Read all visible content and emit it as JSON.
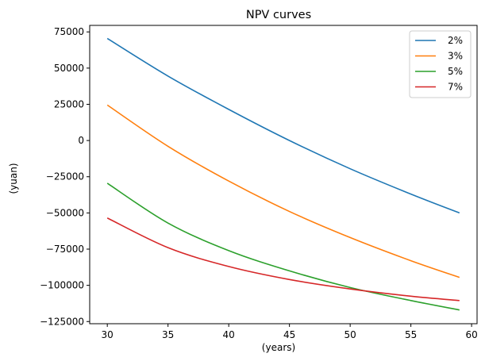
{
  "chart_data": {
    "type": "line",
    "title": "NPV curves",
    "xlabel": "(years)",
    "ylabel": "(yuan)",
    "xlim": [
      28.55,
      60.45
    ],
    "ylim": [
      -126500,
      79500
    ],
    "x_ticks": [
      30,
      35,
      40,
      45,
      50,
      55,
      60
    ],
    "y_ticks": [
      75000,
      50000,
      25000,
      0,
      -25000,
      -50000,
      -75000,
      -100000,
      -125000
    ],
    "y_tick_labels": [
      "75000",
      "50000",
      "25000",
      "0",
      "−25000",
      "−50000",
      "−75000",
      "−100000",
      "−125000"
    ],
    "grid": false,
    "legend_position": "top-right",
    "x": [
      30,
      35,
      40,
      45,
      50,
      55,
      59
    ],
    "series": [
      {
        "name": "2%",
        "color": "#1f77b4",
        "values": [
          70500,
          44500,
          21500,
          0,
          -19500,
          -37000,
          -50000
        ]
      },
      {
        "name": "3%",
        "color": "#ff7f0e",
        "values": [
          24500,
          -4000,
          -28000,
          -49000,
          -67000,
          -83000,
          -94500
        ]
      },
      {
        "name": "5%",
        "color": "#2ca02c",
        "values": [
          -29500,
          -57000,
          -76000,
          -90000,
          -101500,
          -110500,
          -117000
        ]
      },
      {
        "name": "7%",
        "color": "#d62728",
        "values": [
          -53500,
          -74000,
          -87000,
          -96000,
          -102500,
          -107500,
          -110500
        ]
      }
    ]
  }
}
